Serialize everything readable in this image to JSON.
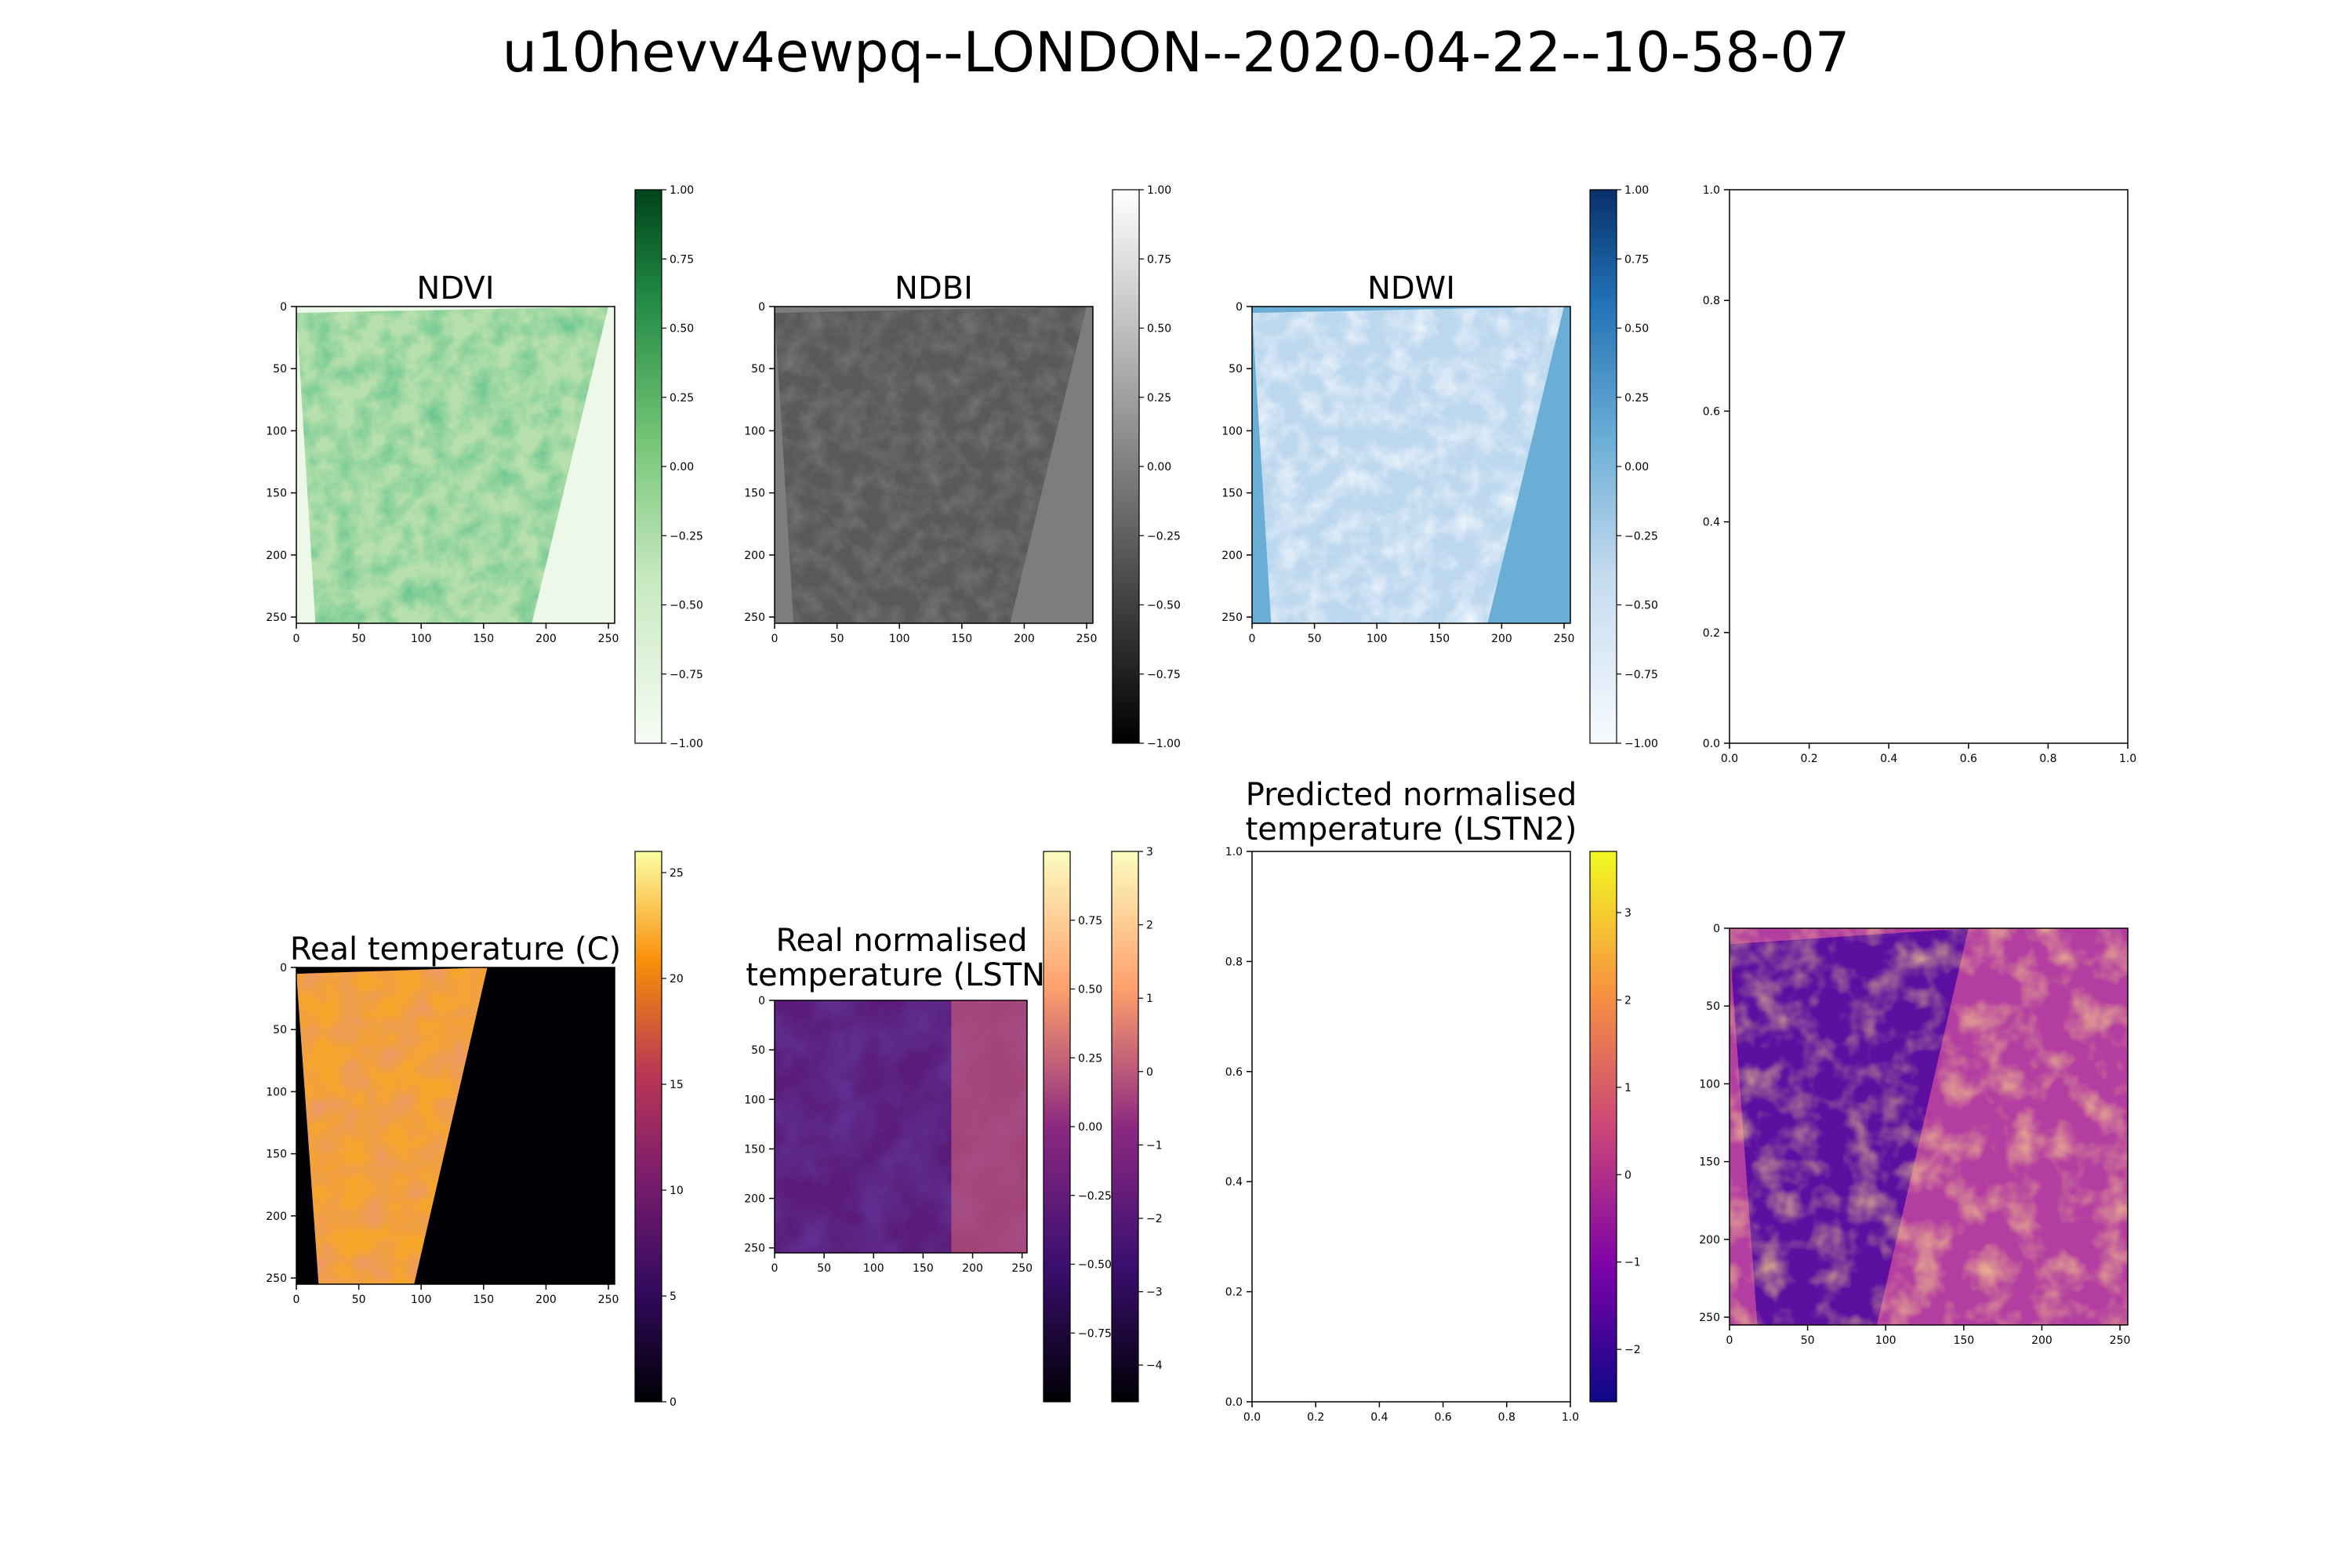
{
  "figure": {
    "suptitle": "u10hevv4ewpq--LONDON--2020-04-22--10-58-07"
  },
  "chart_data": [
    {
      "id": "ndvi",
      "type": "heatmap",
      "title": "NDVI",
      "xlim": [
        0,
        255
      ],
      "ylim": [
        255,
        0
      ],
      "xticks": [
        0,
        50,
        100,
        150,
        200,
        250
      ],
      "yticks": [
        0,
        50,
        100,
        150,
        200,
        250
      ],
      "colormap": "Greens",
      "colorbar": {
        "range": [
          -1.0,
          1.0
        ],
        "ticks": [
          "1.00",
          "0.75",
          "0.50",
          "0.25",
          "0.00",
          "−0.25",
          "−0.50",
          "−0.75",
          "−1.00"
        ]
      }
    },
    {
      "id": "ndbi",
      "type": "heatmap",
      "title": "NDBI",
      "xlim": [
        0,
        255
      ],
      "ylim": [
        255,
        0
      ],
      "xticks": [
        0,
        50,
        100,
        150,
        200,
        250
      ],
      "yticks": [
        0,
        50,
        100,
        150,
        200,
        250
      ],
      "colormap": "Greys",
      "colorbar": {
        "range": [
          -1.0,
          1.0
        ],
        "ticks": [
          "1.00",
          "0.75",
          "0.50",
          "0.25",
          "0.00",
          "−0.25",
          "−0.50",
          "−0.75",
          "−1.00"
        ]
      }
    },
    {
      "id": "ndwi",
      "type": "heatmap",
      "title": "NDWI",
      "xlim": [
        0,
        255
      ],
      "ylim": [
        255,
        0
      ],
      "xticks": [
        0,
        50,
        100,
        150,
        200,
        250
      ],
      "yticks": [
        0,
        50,
        100,
        150,
        200,
        250
      ],
      "colormap": "Blues",
      "colorbar": {
        "range": [
          -1.0,
          1.0
        ],
        "ticks": [
          "1.00",
          "0.75",
          "0.50",
          "0.25",
          "0.00",
          "−0.25",
          "−0.50",
          "−0.75",
          "−1.00"
        ]
      }
    },
    {
      "id": "empty-top",
      "type": "scatter",
      "title": "",
      "xlim": [
        0,
        1
      ],
      "ylim": [
        0,
        1
      ],
      "xticks": [
        "0.0",
        "0.2",
        "0.4",
        "0.6",
        "0.8",
        "1.0"
      ],
      "yticks": [
        "0.0",
        "0.2",
        "0.4",
        "0.6",
        "0.8",
        "1.0"
      ],
      "series": []
    },
    {
      "id": "real-temp",
      "type": "heatmap",
      "title": "Real temperature (C)",
      "xlim": [
        0,
        255
      ],
      "ylim": [
        255,
        0
      ],
      "xticks": [
        0,
        50,
        100,
        150,
        200,
        250
      ],
      "yticks": [
        0,
        50,
        100,
        150,
        200,
        250
      ],
      "colormap": "inferno",
      "colorbar": {
        "range": [
          0,
          26
        ],
        "ticks": [
          "25",
          "20",
          "15",
          "10",
          "5",
          "0"
        ]
      }
    },
    {
      "id": "real-norm",
      "type": "heatmap",
      "title_lines": [
        "Real normalised",
        "temperature (LSTN)"
      ],
      "xlim": [
        0,
        255
      ],
      "ylim": [
        255,
        0
      ],
      "xticks": [
        0,
        50,
        100,
        150,
        200,
        250
      ],
      "yticks": [
        0,
        50,
        100,
        150,
        200,
        250
      ],
      "colormap": "magma",
      "colorbars": [
        {
          "range": [
            -1.0,
            1.0
          ],
          "ticks": [
            "0.75",
            "0.50",
            "0.25",
            "0.00",
            "−0.25",
            "−0.50",
            "−0.75"
          ]
        },
        {
          "range": [
            -4.5,
            3.0
          ],
          "ticks": [
            "3",
            "2",
            "1",
            "0",
            "−1",
            "−2",
            "−3",
            "−4"
          ]
        }
      ]
    },
    {
      "id": "pred-norm",
      "type": "scatter",
      "title_lines": [
        "Predicted normalised",
        "temperature (LSTN2)"
      ],
      "xlim": [
        0,
        1
      ],
      "ylim": [
        0,
        1
      ],
      "xticks": [
        "0.0",
        "0.2",
        "0.4",
        "0.6",
        "0.8",
        "1.0"
      ],
      "yticks": [
        "0.0",
        "0.2",
        "0.4",
        "0.6",
        "0.8",
        "1.0"
      ],
      "series": [],
      "colorbar": {
        "range": [
          -2.6,
          3.7
        ],
        "ticks": [
          "3",
          "2",
          "1",
          "0",
          "−1",
          "−2"
        ]
      }
    },
    {
      "id": "pred-map",
      "type": "heatmap",
      "title": "",
      "xlim": [
        0,
        255
      ],
      "ylim": [
        255,
        0
      ],
      "xticks": [
        0,
        50,
        100,
        150,
        200,
        250
      ],
      "yticks": [
        0,
        50,
        100,
        150,
        200,
        250
      ],
      "colormap": "plasma"
    }
  ]
}
